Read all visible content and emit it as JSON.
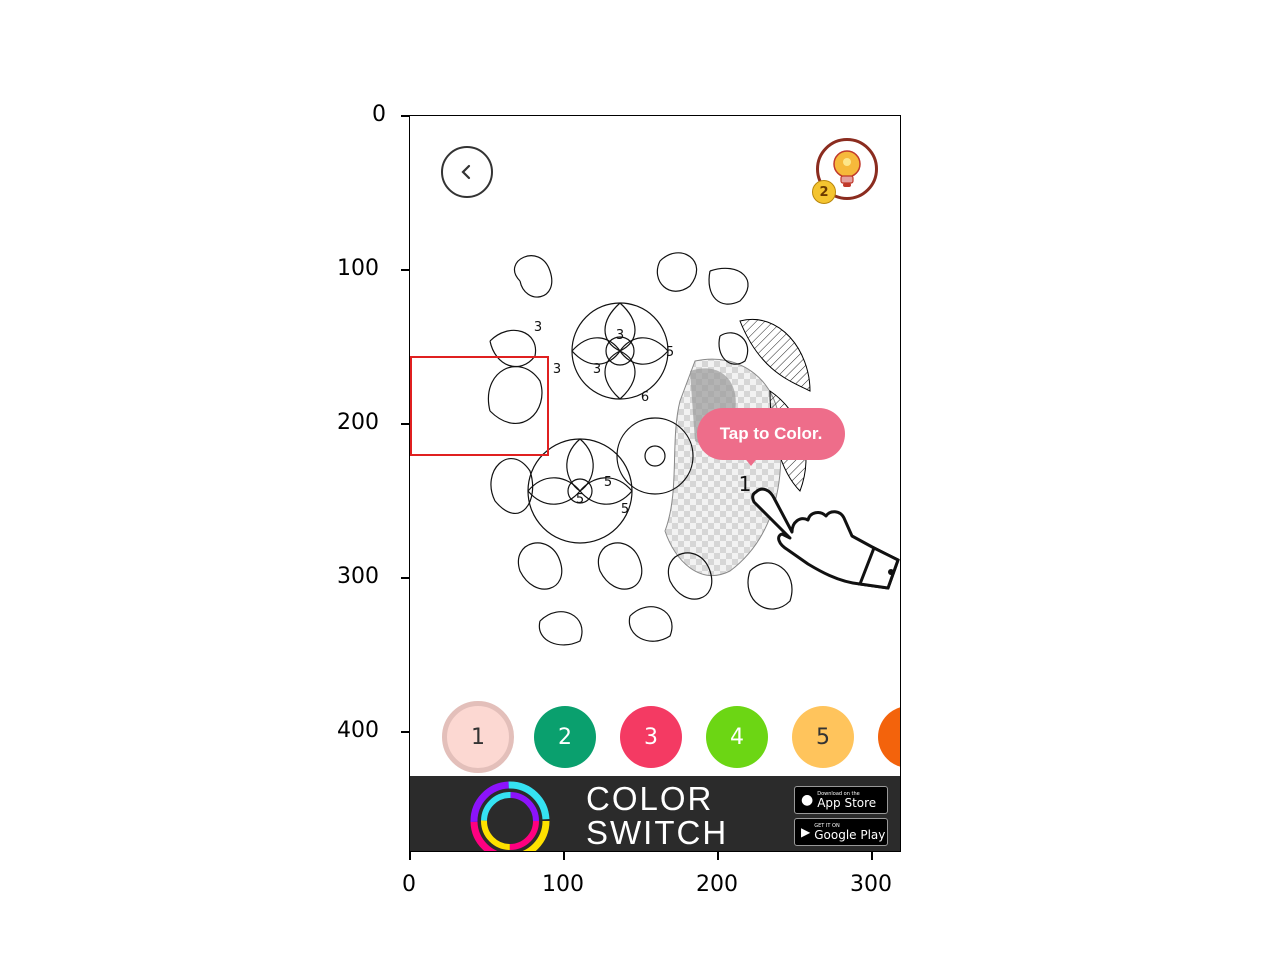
{
  "axes": {
    "y_ticks": [
      "0",
      "100",
      "200",
      "300",
      "400"
    ],
    "x_ticks": [
      "0",
      "100",
      "200",
      "300"
    ]
  },
  "app": {
    "back_icon": "chevron-left-icon",
    "hint_icon": "lightbulb-icon",
    "hint_count": "2",
    "artwork_icon": "flower-coloring-page",
    "region_numbers": [
      "3",
      "3",
      "3",
      "3",
      "5",
      "6",
      "5",
      "5",
      "5",
      "1"
    ],
    "tooltip": "Tap to Color.",
    "palette": [
      {
        "label": "1",
        "color": "#fcd8d2",
        "selected": true
      },
      {
        "label": "2",
        "color": "#0aa06e",
        "selected": false
      },
      {
        "label": "3",
        "color": "#f43a63",
        "selected": false
      },
      {
        "label": "4",
        "color": "#6cd614",
        "selected": false
      },
      {
        "label": "5",
        "color": "#ffc45c",
        "selected": false
      },
      {
        "label": "",
        "color": "#f3630c",
        "selected": false
      }
    ],
    "ad": {
      "title_line1": "COLOR",
      "title_line2": "SWITCH",
      "app_store_small": "Download on the",
      "app_store": "App Store",
      "google_play_small": "GET IT ON",
      "google_play": "Google Play"
    }
  },
  "colors": {
    "tooltip": "#ee6d8a",
    "annotation": "#e02020",
    "ad_background": "#2b2b2b"
  }
}
